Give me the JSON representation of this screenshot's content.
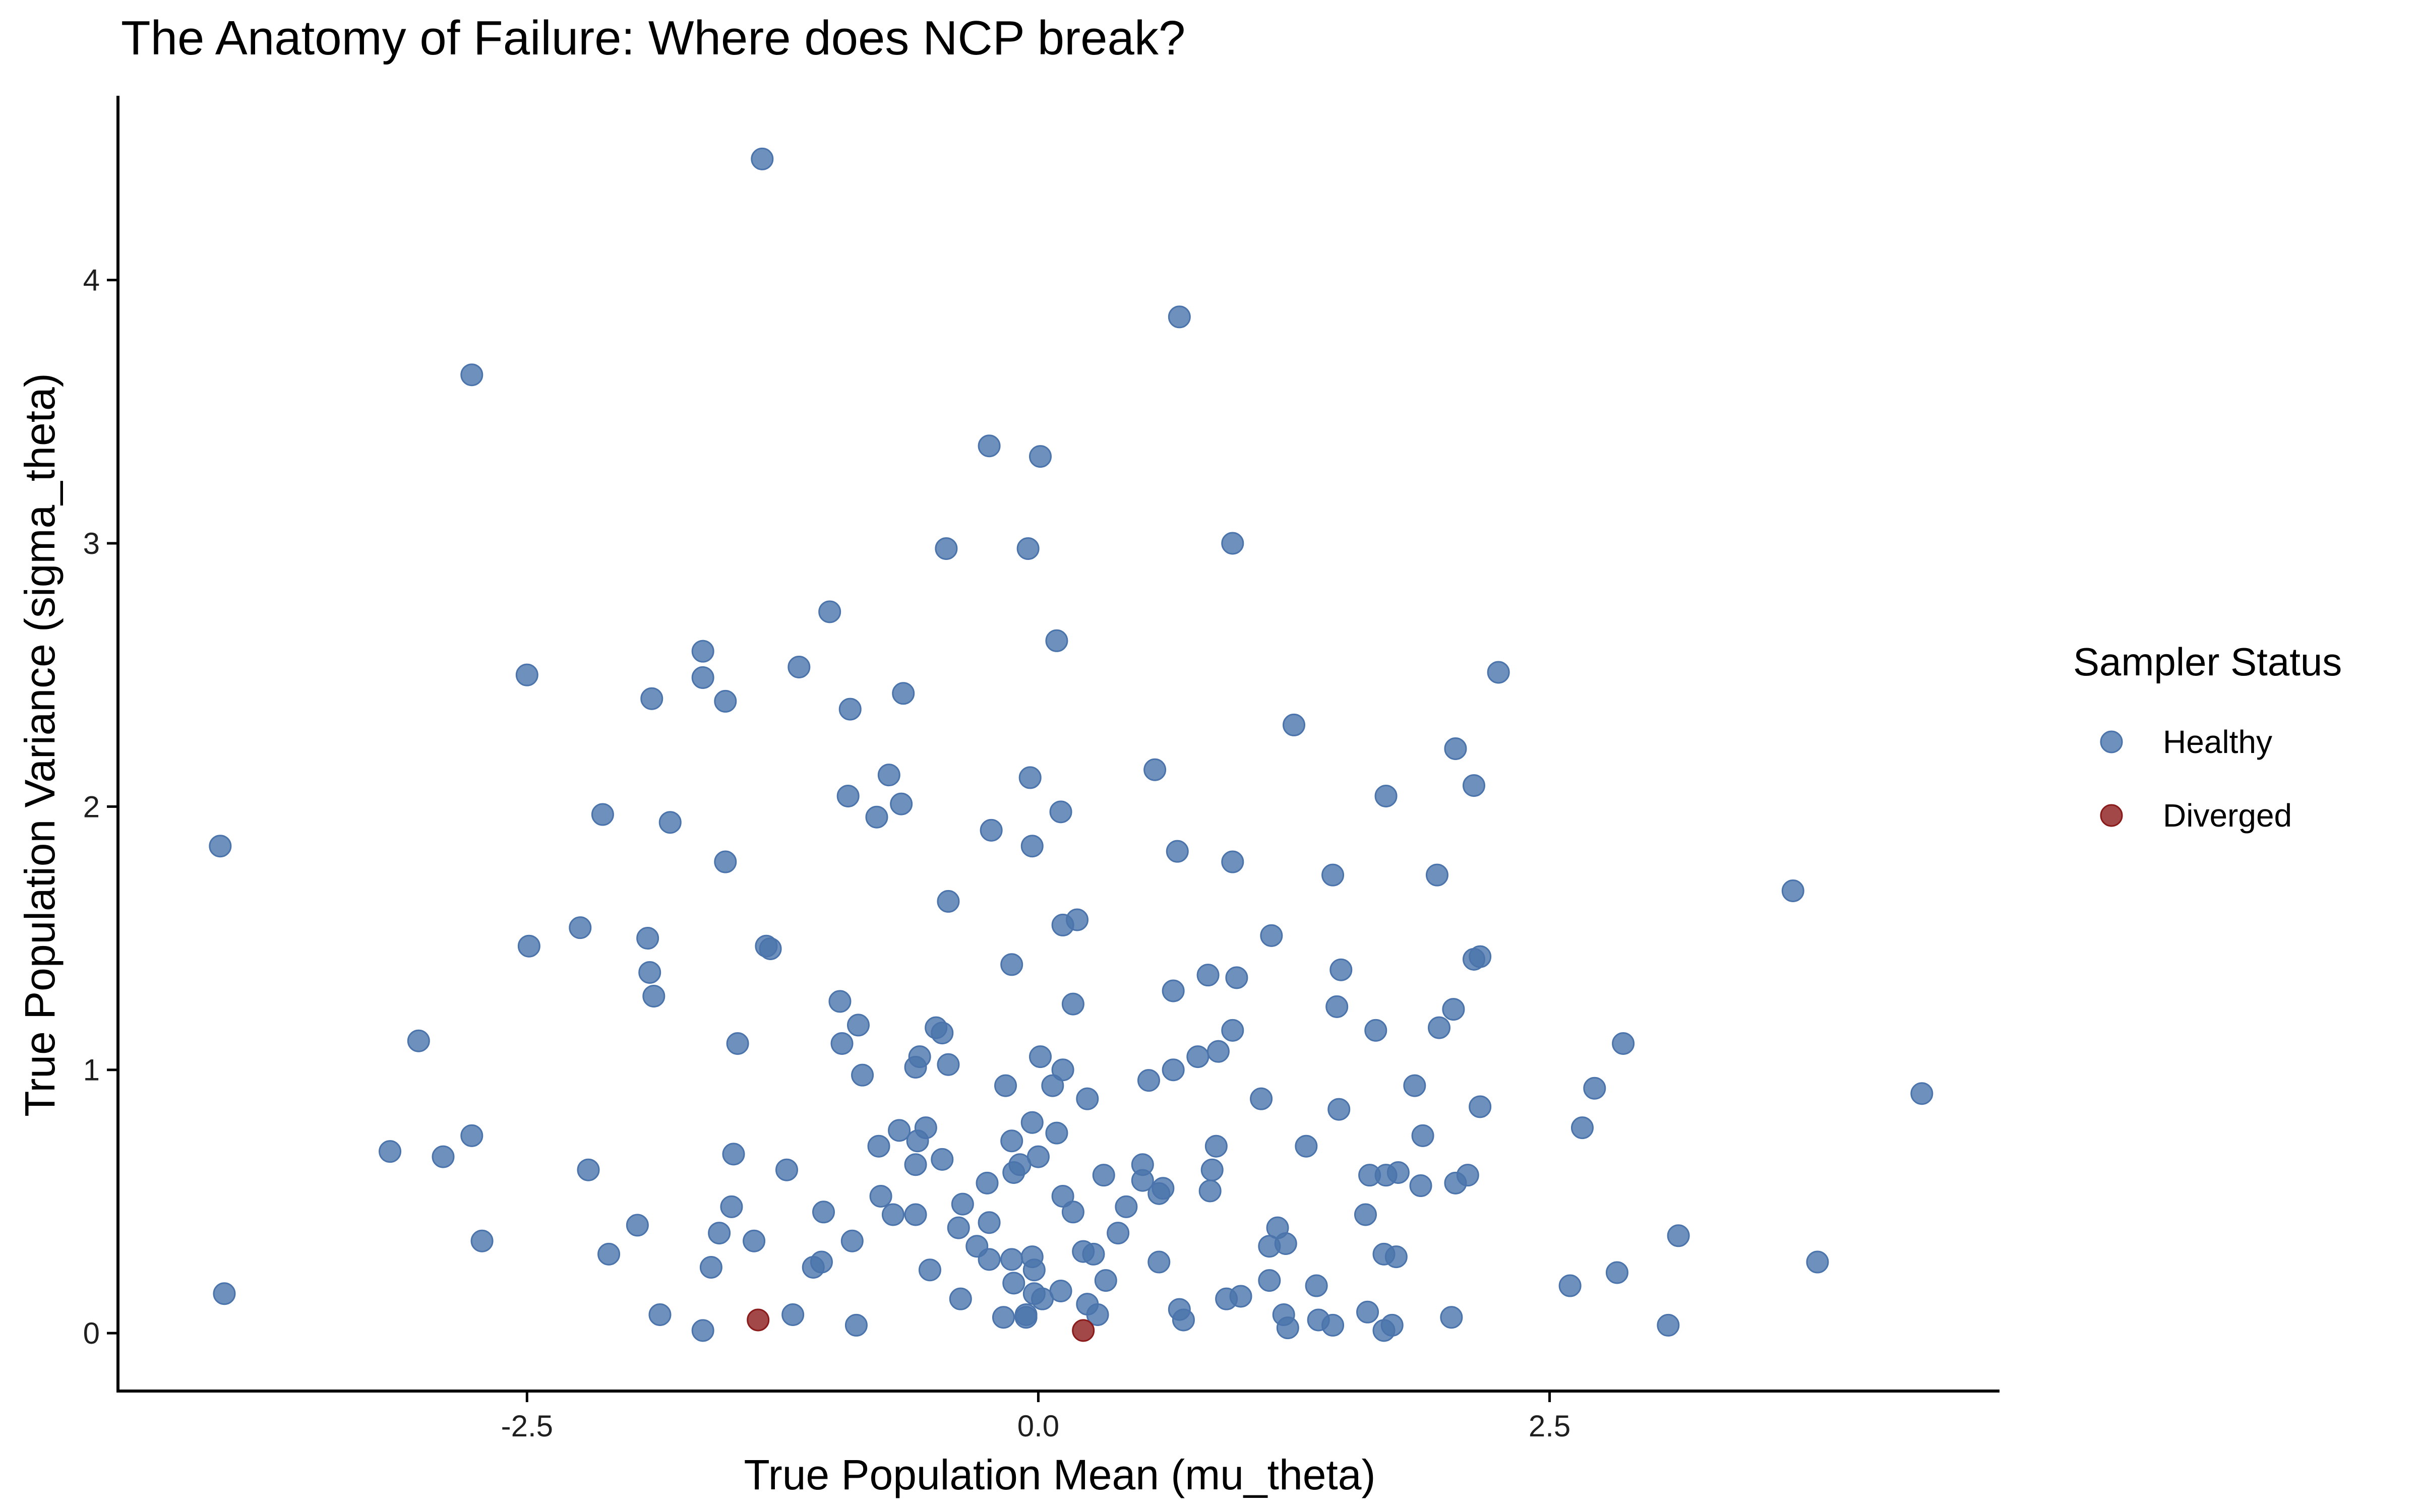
{
  "chart_data": {
    "type": "scatter",
    "title": "The Anatomy of Failure: Where does NCP break?",
    "xlabel": "True Population Mean (mu_theta)",
    "ylabel": "True Population Variance (sigma_theta)",
    "xlim": [
      -4.5,
      4.7
    ],
    "ylim": [
      -0.22,
      4.7
    ],
    "xticks": [
      {
        "value": -2.5,
        "label": "-2.5"
      },
      {
        "value": 0.0,
        "label": "0.0"
      },
      {
        "value": 2.5,
        "label": "2.5"
      }
    ],
    "yticks": [
      {
        "value": 0,
        "label": "0"
      },
      {
        "value": 1,
        "label": "1"
      },
      {
        "value": 2,
        "label": "2"
      },
      {
        "value": 3,
        "label": "3"
      },
      {
        "value": 4,
        "label": "4"
      }
    ],
    "grid": false,
    "legend": {
      "title": "Sampler Status",
      "position": "right",
      "items": [
        {
          "label": "Healthy",
          "color": "#4a74ab"
        },
        {
          "label": "Diverged",
          "color": "#8b1a1a"
        }
      ]
    },
    "series": [
      {
        "name": "Healthy",
        "color": "#4a74ab",
        "points": [
          [
            -1.35,
            4.46
          ],
          [
            0.69,
            3.86
          ],
          [
            -2.77,
            3.64
          ],
          [
            -0.24,
            3.37
          ],
          [
            0.01,
            3.33
          ],
          [
            0.95,
            3.0
          ],
          [
            -0.45,
            2.98
          ],
          [
            -0.05,
            2.98
          ],
          [
            -1.02,
            2.74
          ],
          [
            0.09,
            2.63
          ],
          [
            -1.64,
            2.59
          ],
          [
            -1.17,
            2.53
          ],
          [
            2.25,
            2.51
          ],
          [
            -2.5,
            2.5
          ],
          [
            -1.64,
            2.49
          ],
          [
            -0.66,
            2.43
          ],
          [
            -1.89,
            2.41
          ],
          [
            -1.53,
            2.4
          ],
          [
            -0.92,
            2.37
          ],
          [
            1.25,
            2.31
          ],
          [
            2.04,
            2.22
          ],
          [
            0.57,
            2.14
          ],
          [
            -0.73,
            2.12
          ],
          [
            -0.04,
            2.11
          ],
          [
            2.13,
            2.08
          ],
          [
            -0.93,
            2.04
          ],
          [
            1.7,
            2.04
          ],
          [
            -0.67,
            2.01
          ],
          [
            0.11,
            1.98
          ],
          [
            -2.13,
            1.97
          ],
          [
            -0.79,
            1.96
          ],
          [
            -1.8,
            1.94
          ],
          [
            -0.23,
            1.91
          ],
          [
            -4.0,
            1.85
          ],
          [
            -0.03,
            1.85
          ],
          [
            0.68,
            1.83
          ],
          [
            -1.53,
            1.79
          ],
          [
            0.95,
            1.79
          ],
          [
            1.44,
            1.74
          ],
          [
            1.95,
            1.74
          ],
          [
            3.69,
            1.68
          ],
          [
            -0.44,
            1.64
          ],
          [
            -2.24,
            1.54
          ],
          [
            0.19,
            1.57
          ],
          [
            0.12,
            1.55
          ],
          [
            -1.91,
            1.5
          ],
          [
            1.14,
            1.51
          ],
          [
            -1.33,
            1.47
          ],
          [
            -1.31,
            1.46
          ],
          [
            -2.49,
            1.47
          ],
          [
            2.16,
            1.43
          ],
          [
            2.13,
            1.42
          ],
          [
            -0.13,
            1.4
          ],
          [
            1.48,
            1.38
          ],
          [
            -1.9,
            1.37
          ],
          [
            0.83,
            1.36
          ],
          [
            0.97,
            1.35
          ],
          [
            0.66,
            1.3
          ],
          [
            -1.88,
            1.28
          ],
          [
            -0.97,
            1.26
          ],
          [
            0.17,
            1.25
          ],
          [
            1.46,
            1.24
          ],
          [
            2.03,
            1.23
          ],
          [
            -0.88,
            1.17
          ],
          [
            -0.5,
            1.16
          ],
          [
            0.95,
            1.15
          ],
          [
            1.65,
            1.15
          ],
          [
            -0.47,
            1.14
          ],
          [
            1.96,
            1.16
          ],
          [
            -3.03,
            1.11
          ],
          [
            -1.47,
            1.1
          ],
          [
            -0.96,
            1.1
          ],
          [
            2.86,
            1.1
          ],
          [
            0.88,
            1.07
          ],
          [
            -0.58,
            1.05
          ],
          [
            0.78,
            1.05
          ],
          [
            0.01,
            1.05
          ],
          [
            -0.44,
            1.02
          ],
          [
            -0.6,
            1.01
          ],
          [
            0.12,
            1.0
          ],
          [
            0.66,
            1.0
          ],
          [
            -0.86,
            0.98
          ],
          [
            0.54,
            0.96
          ],
          [
            -0.16,
            0.94
          ],
          [
            0.07,
            0.94
          ],
          [
            1.84,
            0.94
          ],
          [
            2.72,
            0.93
          ],
          [
            4.32,
            0.91
          ],
          [
            0.24,
            0.89
          ],
          [
            1.09,
            0.89
          ],
          [
            2.16,
            0.86
          ],
          [
            1.47,
            0.85
          ],
          [
            -0.03,
            0.8
          ],
          [
            2.66,
            0.78
          ],
          [
            -0.55,
            0.78
          ],
          [
            -0.68,
            0.77
          ],
          [
            0.09,
            0.76
          ],
          [
            -2.77,
            0.75
          ],
          [
            1.88,
            0.75
          ],
          [
            -0.59,
            0.73
          ],
          [
            -0.13,
            0.73
          ],
          [
            -0.78,
            0.71
          ],
          [
            0.87,
            0.71
          ],
          [
            1.31,
            0.71
          ],
          [
            -3.17,
            0.69
          ],
          [
            -1.49,
            0.68
          ],
          [
            -2.91,
            0.67
          ],
          [
            0.0,
            0.67
          ],
          [
            -0.47,
            0.66
          ],
          [
            -0.09,
            0.64
          ],
          [
            -0.6,
            0.64
          ],
          [
            0.51,
            0.64
          ],
          [
            -1.23,
            0.62
          ],
          [
            -2.2,
            0.62
          ],
          [
            -0.12,
            0.61
          ],
          [
            1.76,
            0.61
          ],
          [
            1.7,
            0.6
          ],
          [
            1.62,
            0.6
          ],
          [
            2.1,
            0.6
          ],
          [
            0.32,
            0.6
          ],
          [
            0.85,
            0.62
          ],
          [
            0.51,
            0.58
          ],
          [
            2.04,
            0.57
          ],
          [
            -0.25,
            0.57
          ],
          [
            1.87,
            0.56
          ],
          [
            0.61,
            0.55
          ],
          [
            0.59,
            0.53
          ],
          [
            0.84,
            0.54
          ],
          [
            -0.77,
            0.52
          ],
          [
            0.12,
            0.52
          ],
          [
            -1.5,
            0.48
          ],
          [
            0.43,
            0.48
          ],
          [
            -1.05,
            0.46
          ],
          [
            0.17,
            0.46
          ],
          [
            -0.6,
            0.45
          ],
          [
            -0.71,
            0.45
          ],
          [
            1.6,
            0.45
          ],
          [
            -0.37,
            0.49
          ],
          [
            -0.24,
            0.42
          ],
          [
            1.17,
            0.4
          ],
          [
            -0.39,
            0.4
          ],
          [
            -1.96,
            0.41
          ],
          [
            -1.56,
            0.38
          ],
          [
            0.39,
            0.38
          ],
          [
            3.13,
            0.37
          ],
          [
            -1.39,
            0.35
          ],
          [
            -2.72,
            0.35
          ],
          [
            -0.91,
            0.35
          ],
          [
            1.21,
            0.34
          ],
          [
            1.13,
            0.33
          ],
          [
            -0.3,
            0.33
          ],
          [
            0.22,
            0.31
          ],
          [
            -2.1,
            0.3
          ],
          [
            1.69,
            0.3
          ],
          [
            0.27,
            0.3
          ],
          [
            -0.03,
            0.29
          ],
          [
            1.75,
            0.29
          ],
          [
            -0.24,
            0.28
          ],
          [
            -0.13,
            0.28
          ],
          [
            0.59,
            0.27
          ],
          [
            3.81,
            0.27
          ],
          [
            -1.06,
            0.27
          ],
          [
            -1.1,
            0.25
          ],
          [
            -1.6,
            0.25
          ],
          [
            -0.53,
            0.24
          ],
          [
            -0.02,
            0.24
          ],
          [
            2.83,
            0.23
          ],
          [
            1.13,
            0.2
          ],
          [
            0.33,
            0.2
          ],
          [
            -0.12,
            0.19
          ],
          [
            1.36,
            0.18
          ],
          [
            2.6,
            0.18
          ],
          [
            0.11,
            0.16
          ],
          [
            -0.02,
            0.15
          ],
          [
            -3.98,
            0.15
          ],
          [
            0.02,
            0.13
          ],
          [
            -0.38,
            0.13
          ],
          [
            0.99,
            0.14
          ],
          [
            0.92,
            0.13
          ],
          [
            0.24,
            0.11
          ],
          [
            1.2,
            0.07
          ],
          [
            0.69,
            0.09
          ],
          [
            -1.85,
            0.07
          ],
          [
            -1.2,
            0.07
          ],
          [
            -0.06,
            0.07
          ],
          [
            0.29,
            0.07
          ],
          [
            2.02,
            0.06
          ],
          [
            -0.17,
            0.06
          ],
          [
            1.61,
            0.08
          ],
          [
            -0.06,
            0.06
          ],
          [
            0.71,
            0.05
          ],
          [
            1.37,
            0.05
          ],
          [
            3.08,
            0.03
          ],
          [
            1.44,
            0.03
          ],
          [
            1.22,
            0.02
          ],
          [
            1.73,
            0.03
          ],
          [
            -0.89,
            0.03
          ],
          [
            1.69,
            0.01
          ],
          [
            -1.64,
            0.01
          ]
        ]
      },
      {
        "name": "Diverged",
        "color": "#8b1a1a",
        "points": [
          [
            -1.37,
            0.05
          ],
          [
            0.22,
            0.01
          ]
        ]
      }
    ]
  }
}
